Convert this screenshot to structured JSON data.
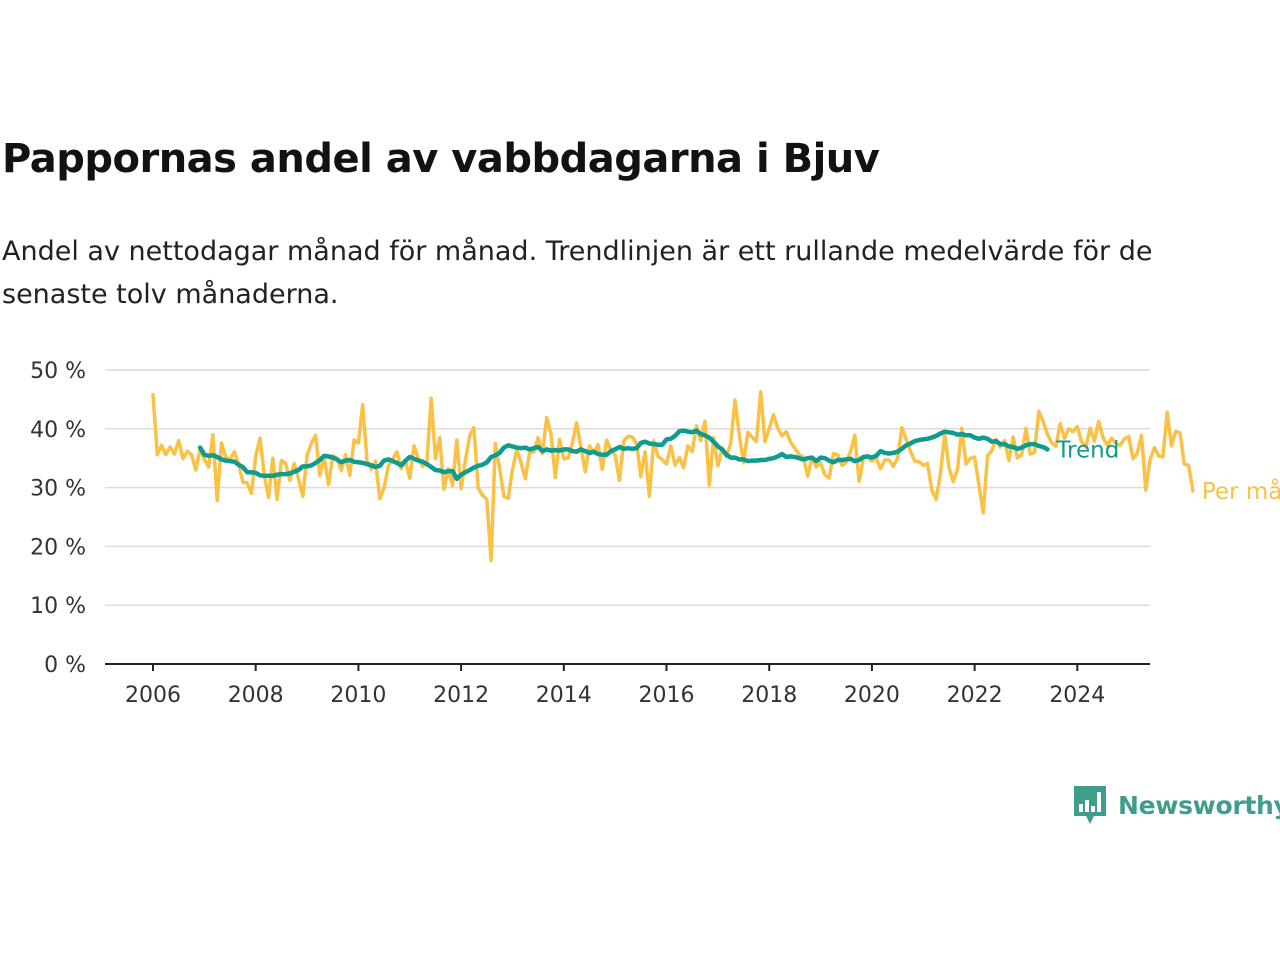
{
  "title": "Pappornas andel av vabbdagarna i Bjuv",
  "subtitle": "Andel av nettodagar månad för månad. Trendlinjen är ett rullande medelvärde för de senaste tolv månaderna.",
  "logo": {
    "text": "Newsworthy",
    "icon": "bar-chart-speech-bubble-icon",
    "color": "#3f9d8e"
  },
  "chart_data": {
    "type": "line",
    "x_start": 2006.0,
    "x_step_months": 1,
    "xlim": [
      2006,
      2024.5
    ],
    "ylim": [
      0,
      50
    ],
    "y_ticks": [
      0,
      10,
      20,
      30,
      40,
      50
    ],
    "y_tick_labels": [
      "0 %",
      "10 %",
      "20 %",
      "30 %",
      "40 %",
      "50 %"
    ],
    "x_ticks": [
      2006,
      2008,
      2010,
      2012,
      2014,
      2016,
      2018,
      2020,
      2022,
      2024
    ],
    "x_tick_labels": [
      "2006",
      "2008",
      "2010",
      "2012",
      "2014",
      "2016",
      "2018",
      "2020",
      "2022",
      "2024"
    ],
    "grid": true,
    "legend": "line-end labels",
    "series": [
      {
        "name": "Trend",
        "color": "#0f9b8e",
        "start": 2006.917,
        "values": [
          36.8,
          35.6,
          35.4,
          35.5,
          35.2,
          34.8,
          34.6,
          34.5,
          34.4,
          33.9,
          33.5,
          32.6,
          32.6,
          32.5,
          32.1,
          32.0,
          32.0,
          32.0,
          32.2,
          32.3,
          32.3,
          32.4,
          32.7,
          33.0,
          33.6,
          33.6,
          33.8,
          34.2,
          34.7,
          35.4,
          35.3,
          35.1,
          34.8,
          34.3,
          34.6,
          34.7,
          34.4,
          34.3,
          34.2,
          34.0,
          33.8,
          33.5,
          33.7,
          34.6,
          34.8,
          34.5,
          34.2,
          33.8,
          34.6,
          35.2,
          34.9,
          34.6,
          34.4,
          34.0,
          33.5,
          33.0,
          32.9,
          32.6,
          32.8,
          32.8,
          31.5,
          32.2,
          32.6,
          33.0,
          33.4,
          33.7,
          33.9,
          34.3,
          35.2,
          35.5,
          35.9,
          36.8,
          37.2,
          37.0,
          36.8,
          36.7,
          36.8,
          36.5,
          36.7,
          36.9,
          36.2,
          36.5,
          36.3,
          36.4,
          36.3,
          36.5,
          36.5,
          36.2,
          36.1,
          36.5,
          36.2,
          35.9,
          36.1,
          35.7,
          35.6,
          35.6,
          36.2,
          36.5,
          36.9,
          36.6,
          36.7,
          36.6,
          36.7,
          37.6,
          37.8,
          37.5,
          37.4,
          37.3,
          37.3,
          38.2,
          38.3,
          38.8,
          39.6,
          39.7,
          39.5,
          39.4,
          39.7,
          39.1,
          38.9,
          38.5,
          37.8,
          37.0,
          36.5,
          35.6,
          35.1,
          35.1,
          34.8,
          34.8,
          34.5,
          34.6,
          34.6,
          34.7,
          34.7,
          34.9,
          35.0,
          35.3,
          35.7,
          35.2,
          35.3,
          35.2,
          35.0,
          34.8,
          35.0,
          35.1,
          34.5,
          35.1,
          35.0,
          34.6,
          34.3,
          34.7,
          34.7,
          34.8,
          34.9,
          34.5,
          34.7,
          35.2,
          35.3,
          35.1,
          35.4,
          36.2,
          35.9,
          35.8,
          35.9,
          36.1,
          36.6,
          37.2,
          37.5,
          37.9,
          38.1,
          38.2,
          38.3,
          38.5,
          38.8,
          39.2,
          39.5,
          39.4,
          39.3,
          39.0,
          39.1,
          38.9,
          38.9,
          38.5,
          38.3,
          38.5,
          38.3,
          37.8,
          37.9,
          37.4,
          37.4,
          37.0,
          36.9,
          36.6,
          36.8,
          37.2,
          37.4,
          37.4,
          37.1,
          36.9,
          36.5
        ]
      },
      {
        "name": "Per månad",
        "color": "#f9c247",
        "start": 2006.0,
        "values": [
          45.8,
          35.6,
          37.2,
          35.6,
          36.9,
          35.7,
          38.0,
          34.9,
          36.2,
          35.6,
          33.0,
          36.5,
          34.8,
          33.5,
          39.0,
          27.8,
          37.6,
          35.2,
          34.8,
          36.1,
          34.0,
          30.9,
          30.8,
          29.0,
          35.3,
          38.4,
          32.1,
          28.3,
          35.0,
          28.0,
          34.6,
          34.1,
          31.2,
          34.1,
          31.5,
          28.5,
          35.5,
          37.5,
          38.9,
          32.1,
          35.2,
          30.5,
          35.4,
          35.0,
          32.9,
          35.6,
          32.1,
          38.1,
          37.6,
          44.1,
          34.6,
          33.1,
          34.5,
          28.1,
          30.0,
          33.7,
          34.8,
          36.1,
          33.2,
          34.6,
          31.6,
          37.1,
          35.0,
          33.6,
          34.5,
          45.2,
          34.9,
          38.5,
          29.7,
          33.2,
          30.3,
          38.1,
          29.8,
          34.7,
          38.8,
          40.2,
          29.9,
          28.7,
          28.0,
          17.6,
          37.5,
          33.3,
          28.5,
          28.2,
          33.1,
          36.4,
          34.3,
          31.5,
          35.9,
          36.1,
          38.5,
          35.8,
          41.9,
          39.1,
          31.7,
          38.2,
          34.9,
          35.0,
          37.6,
          41.0,
          36.8,
          32.7,
          37.1,
          35.9,
          37.3,
          33.1,
          38.1,
          36.4,
          35.5,
          31.2,
          37.9,
          38.7,
          38.6,
          37.5,
          31.9,
          36.1,
          28.5,
          38.0,
          35.3,
          34.8,
          34.0,
          37.1,
          33.8,
          35.1,
          33.4,
          37.1,
          36.1,
          40.5,
          38.0,
          41.3,
          30.4,
          38.5,
          33.7,
          36.6,
          35.3,
          37.5,
          44.9,
          39.0,
          34.2,
          39.4,
          38.6,
          37.8,
          46.3,
          37.8,
          40.0,
          42.4,
          40.1,
          38.8,
          39.5,
          37.7,
          36.7,
          35.6,
          35.1,
          31.9,
          35.1,
          33.5,
          34.2,
          32.2,
          31.6,
          35.8,
          35.6,
          33.8,
          34.3,
          36.1,
          38.9,
          31.1,
          35.0,
          35.2,
          34.5,
          35.0,
          33.2,
          34.7,
          34.7,
          33.6,
          35.0,
          40.2,
          38.2,
          36.2,
          34.5,
          34.4,
          33.8,
          34.1,
          29.6,
          28.0,
          32.4,
          39.1,
          33.5,
          31.0,
          33.1,
          40.1,
          34.0,
          35.0,
          35.2,
          30.5,
          25.7,
          35.4,
          36.3,
          38.2,
          36.9,
          38.0,
          34.6,
          38.6,
          35.0,
          35.6,
          40.1,
          35.7,
          36.0,
          43.0,
          41.2,
          39.1,
          37.6,
          37.0,
          40.9,
          38.4,
          40.0,
          39.5,
          40.4,
          37.8,
          36.9,
          40.1,
          37.9,
          41.3,
          38.5,
          37.2,
          38.4,
          37.5,
          37.2,
          38.3,
          38.7,
          34.9,
          35.8,
          38.9,
          29.6,
          34.8,
          36.8,
          35.4,
          35.2,
          42.8,
          37.1,
          39.6,
          39.3,
          34.0,
          33.8,
          29.4
        ]
      }
    ]
  }
}
